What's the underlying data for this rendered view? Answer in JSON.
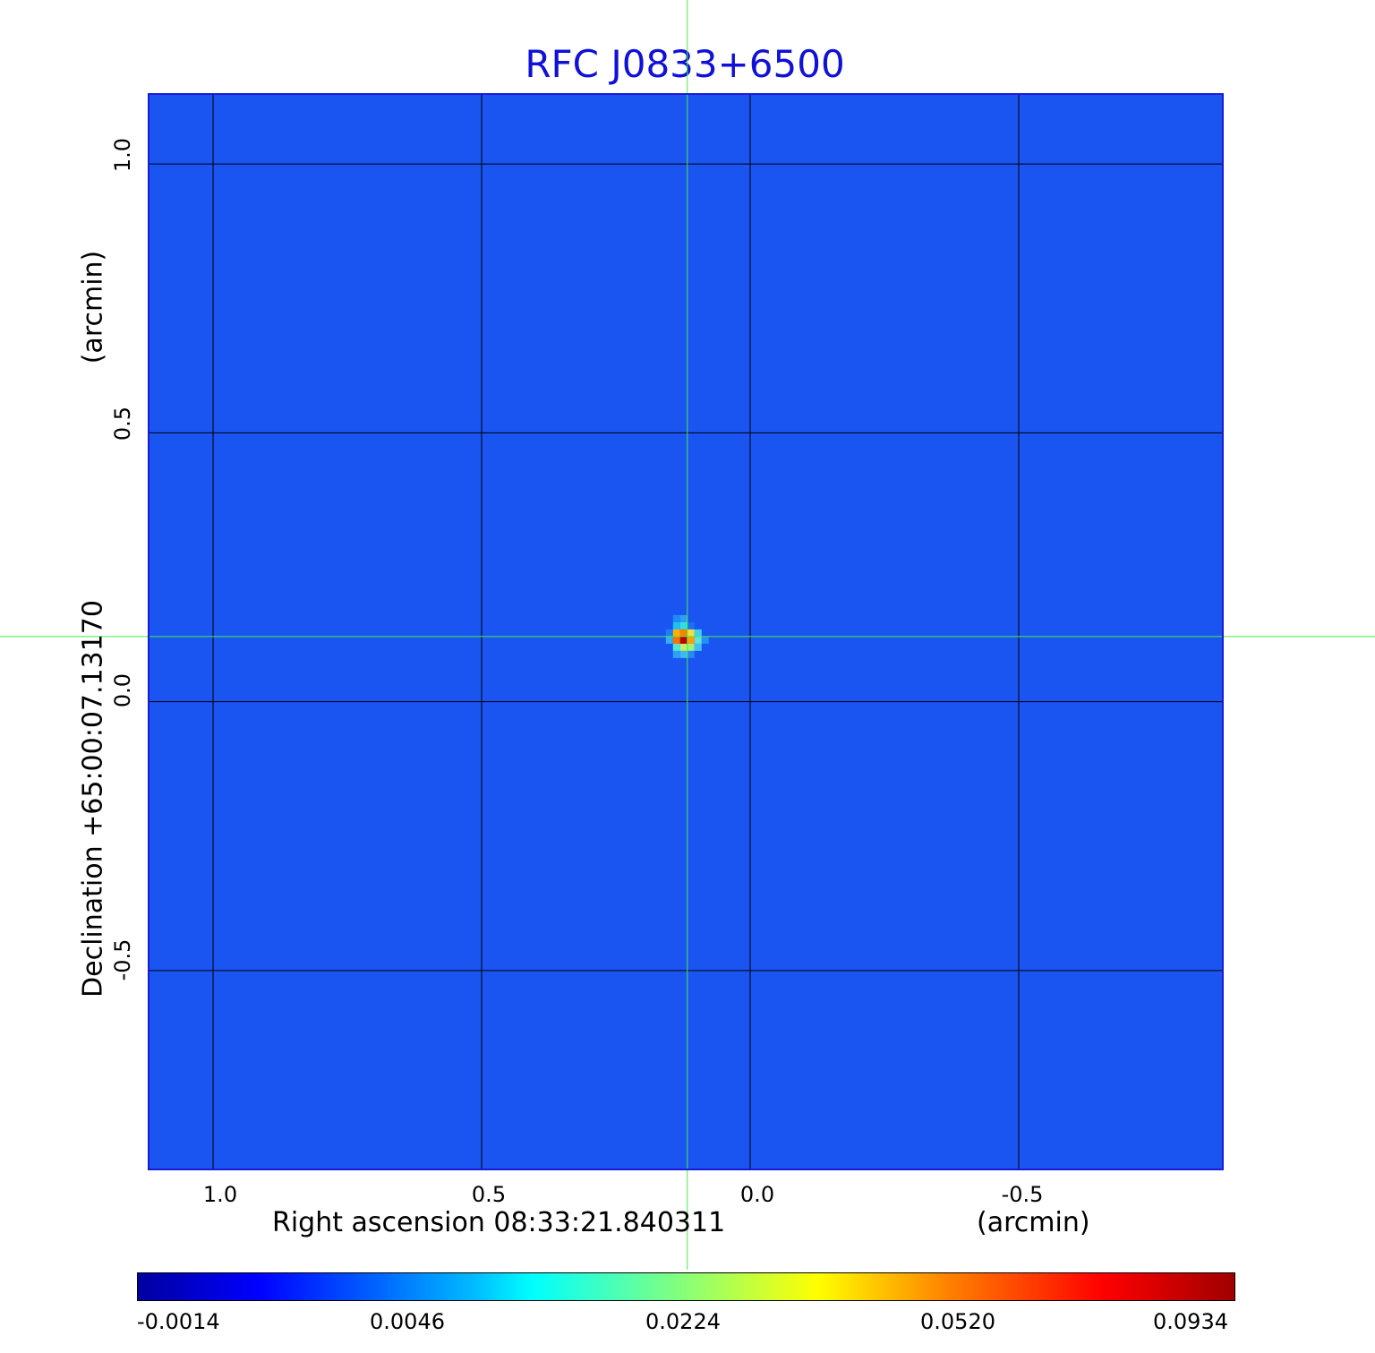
{
  "chart_data": {
    "type": "heatmap",
    "title": "RFC J0833+6500",
    "xlabel": "Right ascension  08:33:21.840311",
    "x_unit": "(arcmin)",
    "ylabel": "Declination  +65:00:07.13170",
    "y_unit": "(arcmin)",
    "x_ticks": [
      "1.0",
      "0.5",
      "0.0",
      "-0.5"
    ],
    "y_ticks": [
      "1.0",
      "0.5",
      "0.0",
      "-0.5"
    ],
    "xlim": [
      1.12,
      -0.88
    ],
    "ylim": [
      -0.87,
      1.13
    ],
    "x_reversed": true,
    "grid": true,
    "crosshair": {
      "x": 0.117,
      "y": 0.121
    },
    "source": {
      "x": 0.117,
      "y": 0.121,
      "peak": 0.0934
    },
    "colorbar": {
      "ticks": [
        "-0.0014",
        "0.0046",
        "0.0224",
        "0.0520",
        "0.0934"
      ],
      "colormap": "jet"
    },
    "colors": {
      "title": "#1010d8",
      "background_map": "#1a55f2",
      "crosshair": "#44ee44",
      "grid": "#000000"
    }
  }
}
